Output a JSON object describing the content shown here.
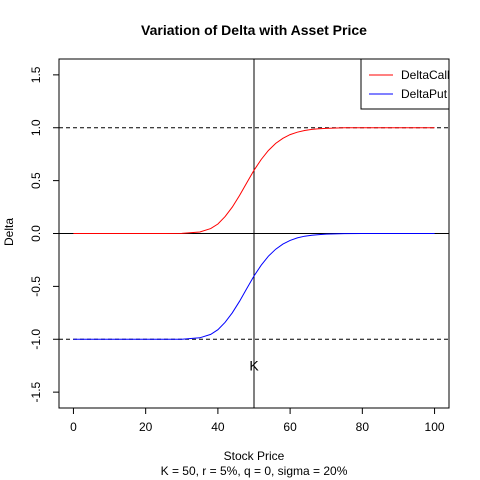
{
  "chart_data": {
    "type": "line",
    "title": "Variation of Delta with Asset Price",
    "xlabel": "Stock Price",
    "subtitle": "K = 50, r = 5%, q = 0, sigma = 20%",
    "ylabel": "Delta",
    "xlim": [
      -4,
      104
    ],
    "ylim": [
      -1.65,
      1.65
    ],
    "xticks": [
      0,
      20,
      40,
      60,
      80,
      100
    ],
    "yticks": [
      -1.5,
      -1.0,
      -0.5,
      0.0,
      0.5,
      1.0,
      1.5
    ],
    "ytick_labels": [
      "-1.5",
      "-1.0",
      "-0.5",
      "0.0",
      "0.5",
      "1.0",
      "1.5"
    ],
    "legend_position": "top-right",
    "hlines_dashed": [
      1,
      -1
    ],
    "hlines_solid": [
      0
    ],
    "vline": {
      "x": 50,
      "label": "K",
      "label_y": -1.25
    },
    "x": [
      0,
      5,
      10,
      15,
      20,
      25,
      30,
      35,
      38,
      40,
      42,
      44,
      46,
      48,
      50,
      52,
      54,
      56,
      58,
      60,
      62,
      64,
      66,
      68,
      70,
      75,
      80,
      85,
      90,
      95,
      100
    ],
    "series": [
      {
        "name": "DeltaCall",
        "color": "#ff0000",
        "values": [
          0,
          0,
          0,
          0,
          0,
          0,
          0.001,
          0.014,
          0.046,
          0.09,
          0.16,
          0.25,
          0.36,
          0.48,
          0.598,
          0.7,
          0.785,
          0.852,
          0.9,
          0.935,
          0.958,
          0.974,
          0.984,
          0.99,
          0.994,
          0.999,
          1,
          1,
          1,
          1,
          1
        ]
      },
      {
        "name": "DeltaPut",
        "color": "#0000ff",
        "values": [
          -1,
          -1,
          -1,
          -1,
          -1,
          -1,
          -0.999,
          -0.986,
          -0.954,
          -0.91,
          -0.84,
          -0.75,
          -0.64,
          -0.52,
          -0.402,
          -0.3,
          -0.215,
          -0.148,
          -0.1,
          -0.065,
          -0.042,
          -0.026,
          -0.016,
          -0.01,
          -0.006,
          -0.001,
          0,
          0,
          0,
          0,
          0
        ]
      }
    ]
  }
}
